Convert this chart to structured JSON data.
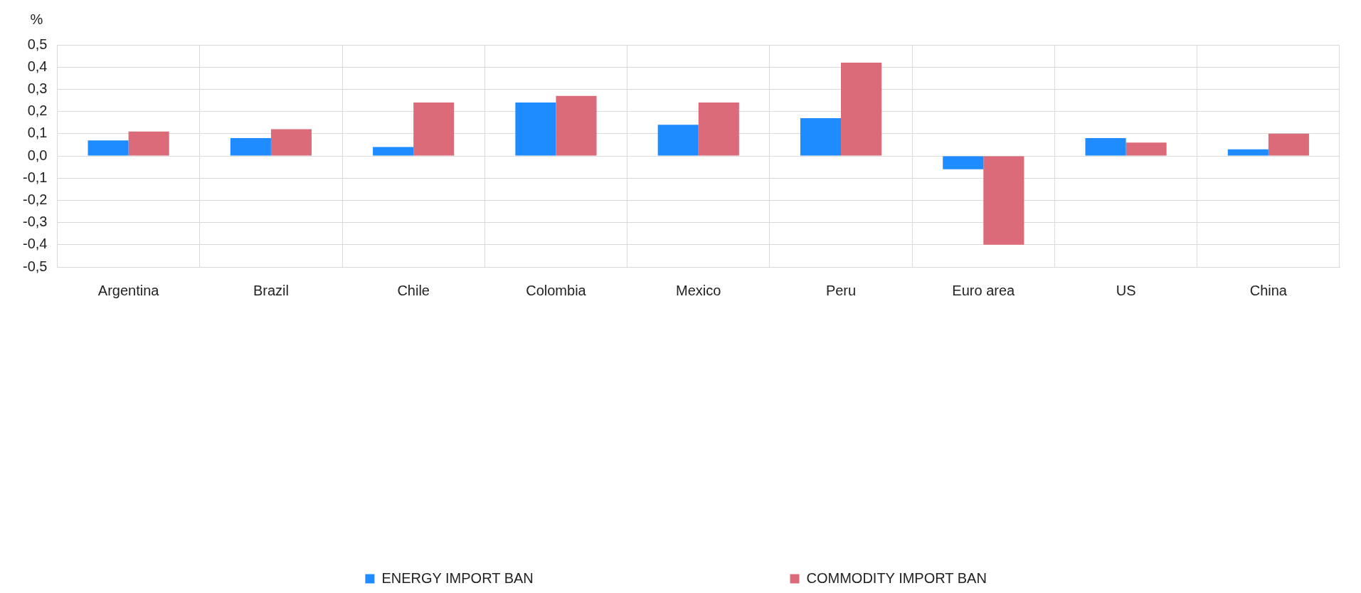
{
  "chart_data": {
    "type": "bar",
    "ylabel": "%",
    "categories": [
      "Argentina",
      "Brazil",
      "Chile",
      "Colombia",
      "Mexico",
      "Peru",
      "Euro area",
      "US",
      "China"
    ],
    "series": [
      {
        "name": "ENERGY IMPORT BAN",
        "color": "#1e8cff",
        "values": [
          0.07,
          0.08,
          0.04,
          0.24,
          0.14,
          0.17,
          -0.06,
          0.08,
          0.03
        ]
      },
      {
        "name": "COMMODITY IMPORT BAN",
        "color": "#db6b78",
        "values": [
          0.11,
          0.12,
          0.24,
          0.27,
          0.24,
          0.42,
          -0.4,
          0.06,
          0.1
        ]
      }
    ],
    "ylim": [
      -0.5,
      0.5
    ],
    "yticks": [
      {
        "value": -0.5,
        "label": "-0,5"
      },
      {
        "value": -0.4,
        "label": "-0,4"
      },
      {
        "value": -0.3,
        "label": "-0,3"
      },
      {
        "value": -0.2,
        "label": "-0,2"
      },
      {
        "value": -0.1,
        "label": "-0,1"
      },
      {
        "value": 0,
        "label": "0,0"
      },
      {
        "value": 0.1,
        "label": "0,1"
      },
      {
        "value": 0.2,
        "label": "0,2"
      },
      {
        "value": 0.3,
        "label": "0,3"
      },
      {
        "value": 0.4,
        "label": "0,4"
      },
      {
        "value": 0.5,
        "label": "0,5"
      }
    ],
    "grid": true,
    "legend": "bottom"
  }
}
